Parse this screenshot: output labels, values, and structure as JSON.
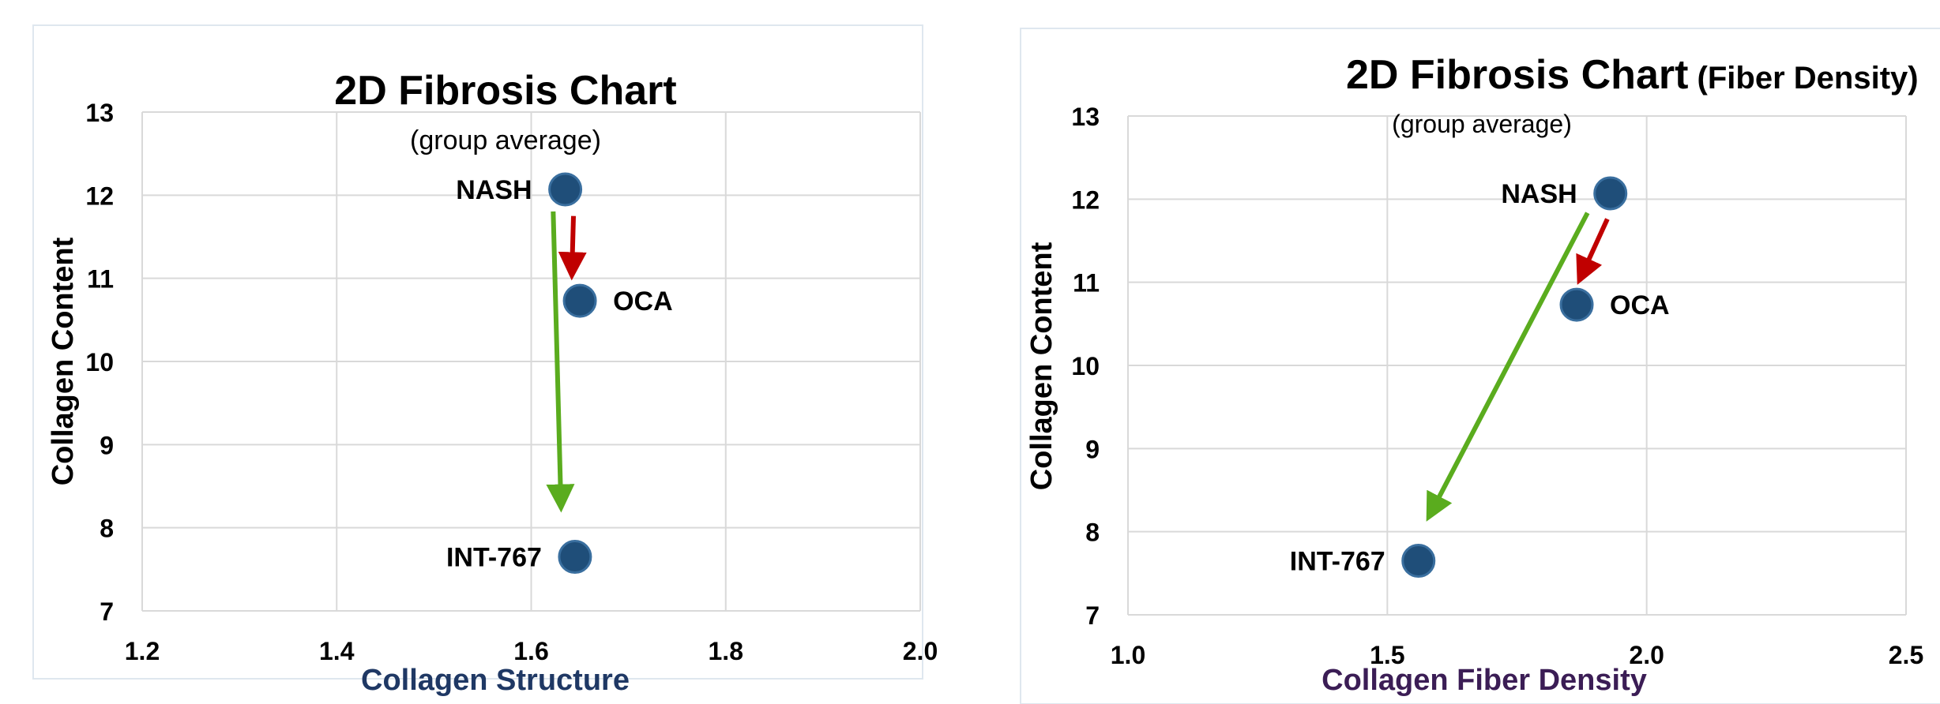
{
  "colors": {
    "point_fill": "#1f4e79",
    "point_stroke": "#3a6f9f",
    "arrow_red": "#c00000",
    "arrow_green": "#5aac1e",
    "grid": "#d9d9d9",
    "xlabel_left": "#1f3864",
    "xlabel_right": "#3b1d55"
  },
  "chart_data": [
    {
      "type": "scatter",
      "title": "2D Fibrosis Chart",
      "title_suffix": "",
      "subtitle": "(group average)",
      "xlabel": "Collagen Structure",
      "ylabel": "Collagen Content",
      "xlim": [
        1.2,
        2.0
      ],
      "ylim": [
        7,
        13
      ],
      "xticks": [
        "1.2",
        "1.4",
        "1.6",
        "1.8",
        "2.0"
      ],
      "yticks": [
        "7",
        "8",
        "9",
        "10",
        "11",
        "12",
        "13"
      ],
      "grid": true,
      "points": [
        {
          "label": "NASH",
          "x": 1.635,
          "y": 12.07,
          "label_side": "left"
        },
        {
          "label": "OCA",
          "x": 1.65,
          "y": 10.73,
          "label_side": "right"
        },
        {
          "label": "INT-767",
          "x": 1.645,
          "y": 7.65,
          "label_side": "left"
        }
      ],
      "arrows": [
        {
          "from": "NASH",
          "to": "OCA",
          "color": "red"
        },
        {
          "from": "NASH",
          "to": "INT-767",
          "color": "green"
        }
      ]
    },
    {
      "type": "scatter",
      "title": "2D Fibrosis Chart",
      "title_suffix": "(Fiber Density)",
      "subtitle": "(group average)",
      "xlabel": "Collagen Fiber Density",
      "ylabel": "Collagen Content",
      "xlim": [
        1.0,
        2.5
      ],
      "ylim": [
        7,
        13
      ],
      "xticks": [
        "1.0",
        "1.5",
        "2.0",
        "2.5"
      ],
      "yticks": [
        "7",
        "8",
        "9",
        "10",
        "11",
        "12",
        "13"
      ],
      "grid": true,
      "points": [
        {
          "label": "NASH",
          "x": 1.93,
          "y": 12.07,
          "label_side": "left"
        },
        {
          "label": "OCA",
          "x": 1.865,
          "y": 10.73,
          "label_side": "right"
        },
        {
          "label": "INT-767",
          "x": 1.56,
          "y": 7.65,
          "label_side": "left"
        }
      ],
      "arrows": [
        {
          "from": "NASH",
          "to": "OCA",
          "color": "red"
        },
        {
          "from": "NASH",
          "to": "INT-767",
          "color": "green"
        }
      ]
    }
  ]
}
